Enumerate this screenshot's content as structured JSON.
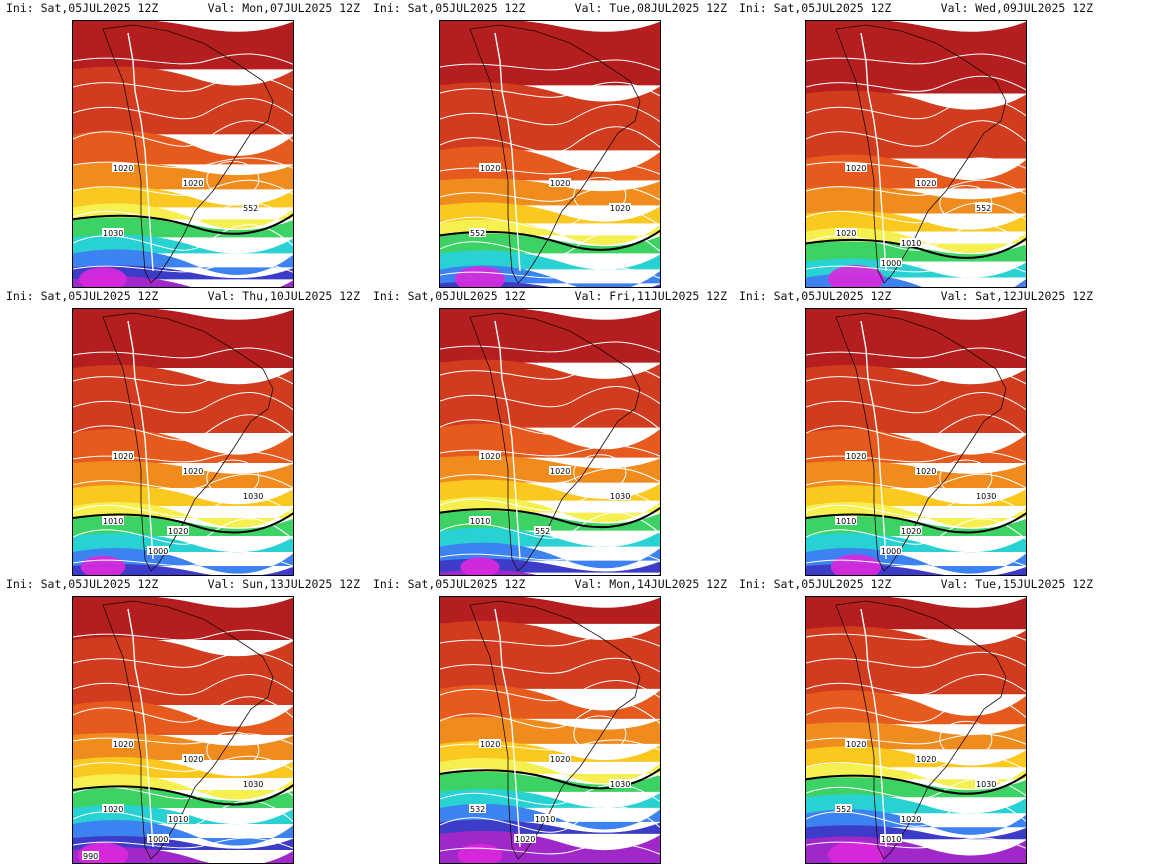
{
  "panels": [
    {
      "ini": "Ini: Sat,05JUL2025 12Z",
      "val": "Val: Mon,07JUL2025 12Z",
      "labels": [
        "1020",
        "1020",
        "552",
        "1030"
      ],
      "front_level": 0.74,
      "low_strength": 0.85
    },
    {
      "ini": "Ini: Sat,05JUL2025 12Z",
      "val": "Val: Tue,08JUL2025 12Z",
      "labels": [
        "1020",
        "1020",
        "1020",
        "552"
      ],
      "front_level": 0.8,
      "low_strength": 0.9
    },
    {
      "ini": "Ini: Sat,05JUL2025 12Z",
      "val": "Val: Wed,09JUL2025 12Z",
      "labels": [
        "1020",
        "1020",
        "552",
        "1020",
        "1010",
        "1000"
      ],
      "front_level": 0.83,
      "low_strength": 1.0
    },
    {
      "ini": "Ini: Sat,05JUL2025 12Z",
      "val": "Val: Thu,10JUL2025 12Z",
      "labels": [
        "1020",
        "1020",
        "1030",
        "1010",
        "1020",
        "1000"
      ],
      "front_level": 0.78,
      "low_strength": 0.8
    },
    {
      "ini": "Ini: Sat,05JUL2025 12Z",
      "val": "Val: Fri,11JUL2025 12Z",
      "labels": [
        "1020",
        "1020",
        "1030",
        "1010",
        "552"
      ],
      "front_level": 0.76,
      "low_strength": 0.7
    },
    {
      "ini": "Ini: Sat,05JUL2025 12Z",
      "val": "Val: Sat,12JUL2025 12Z",
      "labels": [
        "1020",
        "1020",
        "1030",
        "1010",
        "1020",
        "1000"
      ],
      "front_level": 0.78,
      "low_strength": 0.9
    },
    {
      "ini": "Ini: Sat,05JUL2025 12Z",
      "val": "Val: Sun,13JUL2025 12Z",
      "labels": [
        "1020",
        "1020",
        "1030",
        "1020",
        "1010",
        "1000",
        "990"
      ],
      "front_level": 0.72,
      "low_strength": 0.9
    },
    {
      "ini": "Ini: Sat,05JUL2025 12Z",
      "val": "Val: Mon,14JUL2025 12Z",
      "labels": [
        "1020",
        "1020",
        "1030",
        "532",
        "1010",
        "1020"
      ],
      "front_level": 0.66,
      "low_strength": 0.8
    },
    {
      "ini": "Ini: Sat,05JUL2025 12Z",
      "val": "Val: Tue,15JUL2025 12Z",
      "labels": [
        "1020",
        "1020",
        "1030",
        "552",
        "1020",
        "1010"
      ],
      "front_level": 0.68,
      "low_strength": 1.0
    }
  ],
  "palette": {
    "hot": "#b41e1e",
    "warm": "#d23c1e",
    "orange1": "#e65a1e",
    "orange2": "#f08c1e",
    "yellow": "#fac81e",
    "paleyellow": "#f5f050",
    "green": "#3cd264",
    "cyan": "#28d2d2",
    "blue": "#3c82f0",
    "navy": "#3c3cc8",
    "purple": "#a028c8",
    "magenta": "#dc28dc"
  }
}
